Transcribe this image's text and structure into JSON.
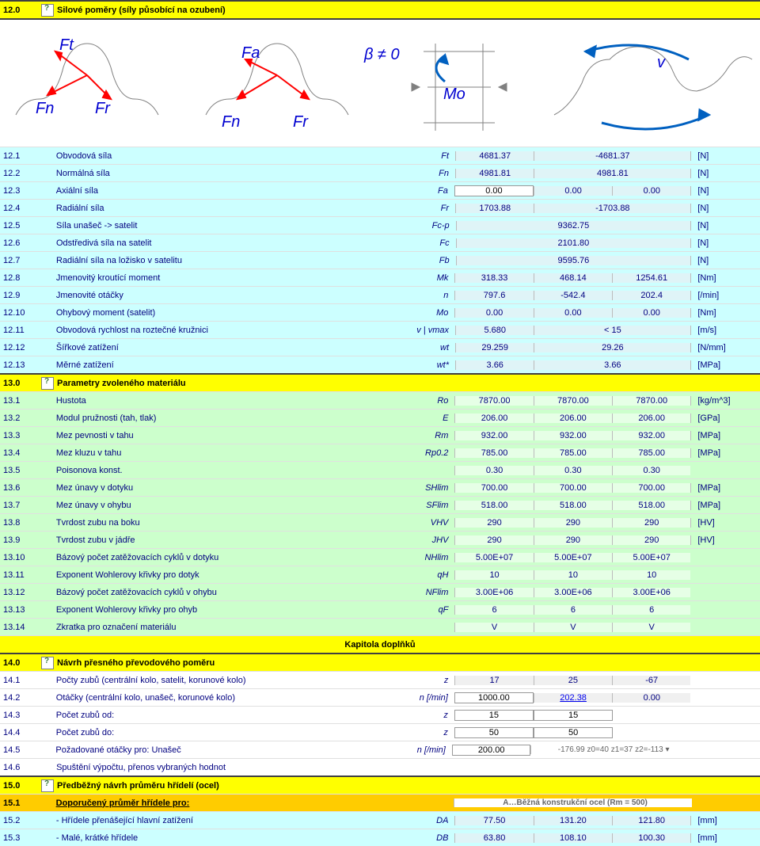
{
  "colors": {
    "text": "#000080",
    "header_bg": "#ffff00",
    "subheader_bg": "#ffcc00",
    "blue_bg": "#ccffff",
    "green_bg": "#ccffcc",
    "value_bg": "#dff4f7",
    "link": "#0000ee"
  },
  "section12": {
    "title_num": "12.0",
    "title": "Silové poměry (síly působící na ozubení)"
  },
  "diagram": {
    "labels": [
      "Ft",
      "Fn",
      "Fr",
      "Fa",
      "Fn",
      "Fr",
      "β ≠ 0",
      "Mo",
      "v"
    ]
  },
  "rows12": [
    {
      "n": "12.1",
      "label": "Obvodová síla",
      "sym": "Ft",
      "v1": "4681.37",
      "v2": "-4681.37",
      "unit": "[N]",
      "cls": "row-blue",
      "merge": 2
    },
    {
      "n": "12.2",
      "label": "Normálná síla",
      "sym": "Fn",
      "v1": "4981.81",
      "v2": "4981.81",
      "unit": "[N]",
      "cls": "row-blue",
      "merge": 2
    },
    {
      "n": "12.3",
      "label": "Axiální síla",
      "sym": "Fa",
      "v1": "0.00",
      "v2": "0.00",
      "v3": "0.00",
      "unit": "[N]",
      "cls": "row-blue",
      "input1": true
    },
    {
      "n": "12.4",
      "label": "Radiální síla",
      "sym": "Fr",
      "v1": "1703.88",
      "v2": "-1703.88",
      "unit": "[N]",
      "cls": "row-blue",
      "merge": 2
    },
    {
      "n": "12.5",
      "label": "Síla unašeč -> satelit",
      "sym": "Fc-p",
      "v1": "9362.75",
      "unit": "[N]",
      "cls": "row-blue",
      "merge": 3
    },
    {
      "n": "12.6",
      "label": "Odstředivá síla na satelit",
      "sym": "Fc",
      "v1": "2101.80",
      "unit": "[N]",
      "cls": "row-blue",
      "merge": 3
    },
    {
      "n": "12.7",
      "label": "Radiální síla na ložisko v satelitu",
      "sym": "Fb",
      "v1": "9595.76",
      "unit": "[N]",
      "cls": "row-blue",
      "merge": 3
    },
    {
      "n": "12.8",
      "label": "Jmenovitý kroutící moment",
      "sym": "Mk",
      "v1": "318.33",
      "v2": "468.14",
      "v3": "1254.61",
      "unit": "[Nm]",
      "cls": "row-blue"
    },
    {
      "n": "12.9",
      "label": "Jmenovité otáčky",
      "sym": "n",
      "v1": "797.6",
      "v2": "-542.4",
      "v3": "202.4",
      "unit": "[/min]",
      "cls": "row-blue"
    },
    {
      "n": "12.10",
      "label": "Ohybový moment (satelit)",
      "sym": "Mo",
      "v1": "0.00",
      "v2": "0.00",
      "v3": "0.00",
      "unit": "[Nm]",
      "cls": "row-blue"
    },
    {
      "n": "12.11",
      "label": "Obvodová rychlost na roztečné kružnici",
      "sym": "v | vmax",
      "v1": "5.680",
      "v2": "< 15",
      "unit": "[m/s]",
      "cls": "row-blue",
      "merge": 2
    },
    {
      "n": "12.12",
      "label": "Šířkové zatížení",
      "sym": "wt",
      "v1": "29.259",
      "v2": "29.26",
      "unit": "[N/mm]",
      "cls": "row-blue",
      "merge": 2
    },
    {
      "n": "12.13",
      "label": "Měrné zatížení",
      "sym": "wt*",
      "v1": "3.66",
      "v2": "3.66",
      "unit": "[MPa]",
      "cls": "row-blue",
      "merge": 2
    }
  ],
  "section13": {
    "title_num": "13.0",
    "title": "Parametry zvoleného materiálu"
  },
  "rows13": [
    {
      "n": "13.1",
      "label": "Hustota",
      "sym": "Ro",
      "v1": "7870.00",
      "v2": "7870.00",
      "v3": "7870.00",
      "unit": "[kg/m^3]",
      "cls": "row-green"
    },
    {
      "n": "13.2",
      "label": "Modul pružnosti (tah, tlak)",
      "sym": "E",
      "v1": "206.00",
      "v2": "206.00",
      "v3": "206.00",
      "unit": "[GPa]",
      "cls": "row-green"
    },
    {
      "n": "13.3",
      "label": "Mez pevnosti v tahu",
      "sym": "Rm",
      "v1": "932.00",
      "v2": "932.00",
      "v3": "932.00",
      "unit": "[MPa]",
      "cls": "row-green"
    },
    {
      "n": "13.4",
      "label": "Mez kluzu v tahu",
      "sym": "Rp0.2",
      "v1": "785.00",
      "v2": "785.00",
      "v3": "785.00",
      "unit": "[MPa]",
      "cls": "row-green"
    },
    {
      "n": "13.5",
      "label": "Poisonova konst.",
      "sym": "",
      "v1": "0.30",
      "v2": "0.30",
      "v3": "0.30",
      "unit": "",
      "cls": "row-green"
    },
    {
      "n": "13.6",
      "label": "Mez únavy v dotyku",
      "sym": "SHlim",
      "v1": "700.00",
      "v2": "700.00",
      "v3": "700.00",
      "unit": "[MPa]",
      "cls": "row-green"
    },
    {
      "n": "13.7",
      "label": "Mez únavy v ohybu",
      "sym": "SFlim",
      "v1": "518.00",
      "v2": "518.00",
      "v3": "518.00",
      "unit": "[MPa]",
      "cls": "row-green"
    },
    {
      "n": "13.8",
      "label": "Tvrdost zubu na boku",
      "sym": "VHV",
      "v1": "290",
      "v2": "290",
      "v3": "290",
      "unit": "[HV]",
      "cls": "row-green"
    },
    {
      "n": "13.9",
      "label": "Tvrdost zubu v jádře",
      "sym": "JHV",
      "v1": "290",
      "v2": "290",
      "v3": "290",
      "unit": "[HV]",
      "cls": "row-green"
    },
    {
      "n": "13.10",
      "label": "Bázový počet zatěžovacích cyklů v dotyku",
      "sym": "NHlim",
      "v1": "5.00E+07",
      "v2": "5.00E+07",
      "v3": "5.00E+07",
      "unit": "",
      "cls": "row-green"
    },
    {
      "n": "13.11",
      "label": "Exponent Wohlerovy křivky pro dotyk",
      "sym": "qH",
      "v1": "10",
      "v2": "10",
      "v3": "10",
      "unit": "",
      "cls": "row-green"
    },
    {
      "n": "13.12",
      "label": "Bázový počet zatěžovacích cyklů v ohybu",
      "sym": "NFlim",
      "v1": "3.00E+06",
      "v2": "3.00E+06",
      "v3": "3.00E+06",
      "unit": "",
      "cls": "row-green"
    },
    {
      "n": "13.13",
      "label": "Exponent Wohlerovy křivky pro ohyb",
      "sym": "qF",
      "v1": "6",
      "v2": "6",
      "v3": "6",
      "unit": "",
      "cls": "row-green"
    },
    {
      "n": "13.14",
      "label": "Zkratka pro označení materiálu",
      "sym": "",
      "v1": "V",
      "v2": "V",
      "v3": "V",
      "unit": "",
      "cls": "row-green"
    }
  ],
  "chapter": "Kapitola doplňků",
  "section14": {
    "title_num": "14.0",
    "title": "Návrh přesného převodového poměru"
  },
  "rows14": [
    {
      "n": "14.1",
      "label": "Počty zubů (centrální kolo, satelit, korunové kolo)",
      "sym": "z",
      "v1": "17",
      "v2": "25",
      "v3": "-67",
      "cls": "row-plain"
    },
    {
      "n": "14.2",
      "label": "Otáčky (centrální kolo, unašeč, korunové kolo)",
      "sym": "n [/min]",
      "v1": "1000.00",
      "v2": "202.38",
      "v3": "0.00",
      "cls": "row-plain",
      "input1": true,
      "link2": true
    },
    {
      "n": "14.3",
      "label": "Počet zubů od:",
      "sym": "z",
      "v1": "15",
      "v2": "15",
      "cls": "row-plain",
      "input1": true,
      "input2": true,
      "nov3": true
    },
    {
      "n": "14.4",
      "label": "Počet zubů do:",
      "sym": "z",
      "v1": "50",
      "v2": "50",
      "cls": "row-plain",
      "input1": true,
      "input2": true,
      "nov3": true
    },
    {
      "n": "14.5",
      "label": "Požadované otáčky pro: Unašeč",
      "sym": "n [/min]",
      "v1": "200.00",
      "dd": "-176.99   z0=40   z1=37   z2=-113   ▾",
      "cls": "row-plain",
      "input1": true
    },
    {
      "n": "14.6",
      "label": "Spuštění výpočtu, přenos vybraných hodnot",
      "sym": "",
      "cls": "row-plain",
      "nov": true
    }
  ],
  "section15": {
    "title_num": "15.0",
    "title": "Předběžný návrh průměru hřídelí (ocel)"
  },
  "rows15sub": {
    "n": "15.1",
    "label": "Doporučený průměr hřídele pro:",
    "dd": "A…Běžná konstrukční ocel (Rm = 500)"
  },
  "rows15": [
    {
      "n": "15.2",
      "label": "   - Hřídele přenášející hlavní zatížení",
      "sym": "DA",
      "v1": "77.50",
      "v2": "131.20",
      "v3": "121.80",
      "unit": "[mm]",
      "cls": "row-blue"
    },
    {
      "n": "15.3",
      "label": "   - Malé, krátké hřídele",
      "sym": "DB",
      "v1": "63.80",
      "v2": "108.10",
      "v3": "100.30",
      "unit": "[mm]",
      "cls": "row-blue"
    }
  ]
}
